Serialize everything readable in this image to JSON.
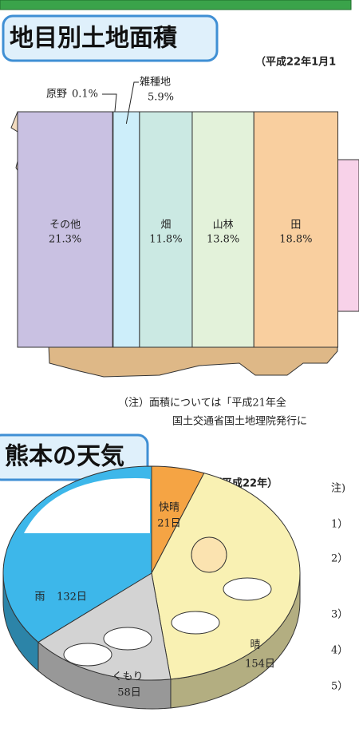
{
  "chart_data": [
    {
      "type": "strip",
      "title": "地目別土地面積",
      "subtitle": "（平成22年1月1",
      "categories": [
        "その他",
        "原野",
        "雑種地",
        "畑",
        "山林",
        "田"
      ],
      "values": [
        21.3,
        0.1,
        5.9,
        11.8,
        13.8,
        18.8
      ],
      "value_labels": [
        "21.3%",
        "0.1%",
        "5.9%",
        "11.8%",
        "13.8%",
        "18.8%"
      ],
      "colors": [
        "#c9c1e2",
        "#d6f0fa",
        "#cdeefa",
        "#cbe9e3",
        "#e3f2da",
        "#f9cf9f"
      ],
      "annotations": [
        "（注）面積については「平成21年全",
        "国土交通省国土地理院発行に"
      ]
    },
    {
      "type": "pie",
      "title": "熊本の天気",
      "subtitle": "（平成22年）",
      "categories": [
        "快晴",
        "晴",
        "くもり",
        "雨"
      ],
      "values": [
        21,
        154,
        58,
        132
      ],
      "value_labels": [
        "21日",
        "154日",
        "58日",
        "132日"
      ],
      "colors": [
        "#f5a444",
        "#f9f1b3",
        "#d3d3d3",
        "#3db7ea"
      ],
      "annotations": [
        "注)",
        "1）",
        "2）",
        "3）",
        "4）",
        "5）"
      ]
    }
  ]
}
